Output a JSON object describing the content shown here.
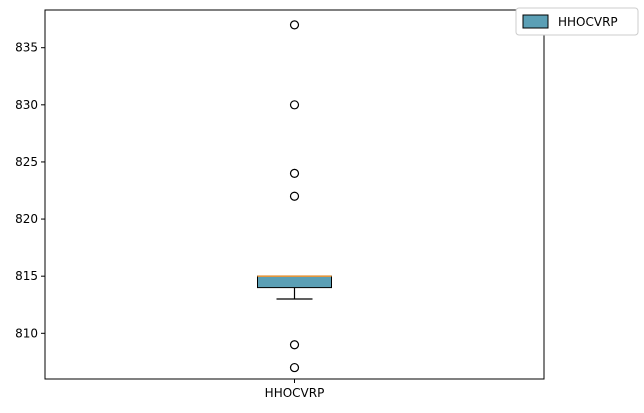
{
  "chart_data": {
    "type": "boxplot",
    "title": "",
    "xlabel": "",
    "ylabel": "",
    "categories": [
      "HHOCVRP"
    ],
    "series": [
      {
        "name": "HHOCVRP",
        "q1": 814,
        "median": 815,
        "q3": 815,
        "whisker_low": 813,
        "whisker_high": 815,
        "outliers": [
          837,
          830,
          824,
          822,
          809,
          807
        ]
      }
    ],
    "ylim": [
      806.0,
      838.3
    ],
    "yticks": [
      810,
      815,
      820,
      825,
      830,
      835
    ],
    "grid": false,
    "legend": {
      "position": "top-right",
      "entries": [
        "HHOCVRP"
      ]
    },
    "colors": {
      "box_fill": "#5b9fb5",
      "median_line": "#e3963e",
      "outline": "#000000"
    }
  }
}
